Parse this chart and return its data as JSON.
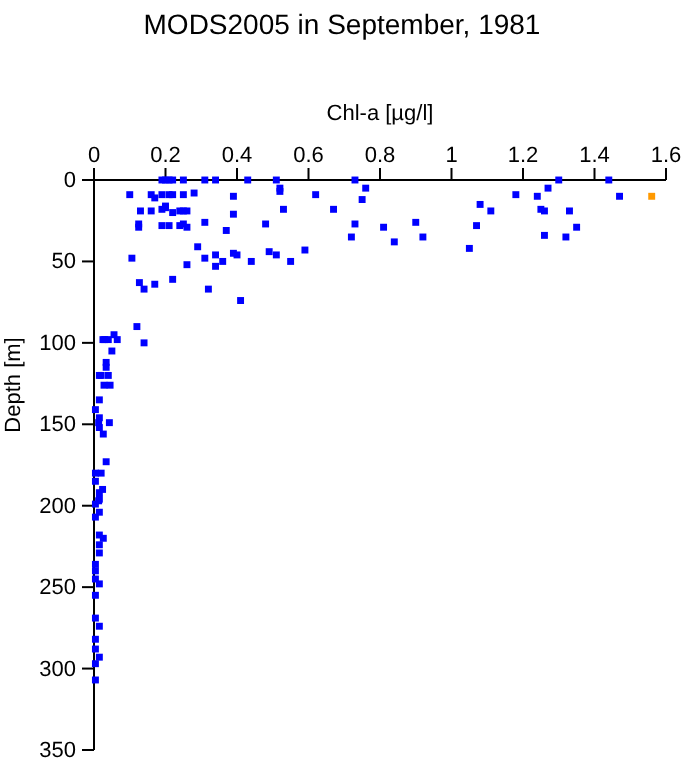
{
  "chart_data": {
    "type": "scatter",
    "title": "MODS2005 in September, 1981",
    "xlabel": "Chl-a [µg/l]",
    "ylabel": "Depth [m]",
    "xlim": [
      0,
      1.6
    ],
    "xticks": [
      0,
      0.2,
      0.4,
      0.6,
      0.8,
      1,
      1.2,
      1.4,
      1.6
    ],
    "ylim": [
      350,
      0
    ],
    "yticks": [
      0,
      50,
      100,
      150,
      200,
      250,
      300,
      350
    ],
    "marker": "square",
    "grid": false,
    "series": [
      {
        "color": "#0000ff",
        "x": [
          0.1,
          0.13,
          0.125,
          0.125,
          0.106,
          0.127,
          0.14,
          0.17,
          0.22,
          0.26,
          0.29,
          0.31,
          0.34,
          0.34,
          0.32,
          0.36,
          0.39,
          0.4,
          0.41,
          0.44,
          0.49,
          0.51,
          0.55,
          0.59,
          0.37,
          0.39,
          0.39,
          0.48,
          0.53,
          0.52,
          0.52,
          0.62,
          0.67,
          0.72,
          0.73,
          0.75,
          0.76,
          0.73,
          0.51,
          0.43,
          0.34,
          0.31,
          0.19,
          0.2,
          0.21,
          0.22,
          0.25,
          0.16,
          0.19,
          0.21,
          0.25,
          0.22,
          0.28,
          0.19,
          0.2,
          0.22,
          0.2,
          0.24,
          0.25,
          0.26,
          0.19,
          0.21,
          0.24,
          0.25,
          0.26,
          0.31,
          0.16,
          0.17,
          0.81,
          0.84,
          0.9,
          0.92,
          1.05,
          1.07,
          1.08,
          1.11,
          1.18,
          1.24,
          1.25,
          1.26,
          1.27,
          1.3,
          1.26,
          1.32,
          1.33,
          1.35,
          1.44,
          1.47,
          0.12,
          0.14,
          0.056,
          0.03,
          0.025,
          0.04,
          0.065,
          0.05,
          0.034,
          0.034,
          0.02,
          0.015,
          0.04,
          0.028,
          0.045,
          0.015,
          0.004,
          0.015,
          0.013,
          0.015,
          0.043,
          0.026,
          0.034,
          0.004,
          0.02,
          0.004,
          0.024,
          0.015,
          0.015,
          0.004,
          0.013,
          0.015,
          0.004,
          0.015,
          0.026,
          0.015,
          0.015,
          0.004,
          0.004,
          0.004,
          0.015,
          0.004,
          0.004,
          0.015,
          0.004,
          0.004,
          0.015,
          0.004,
          0.004
        ],
        "values": [
          9,
          19,
          27,
          29,
          48,
          63,
          67,
          64,
          61,
          52,
          41,
          48,
          46,
          53,
          67,
          50,
          45,
          46,
          74,
          50,
          44,
          46,
          50,
          43,
          31,
          21,
          10,
          27,
          18,
          5,
          7,
          9,
          18,
          35,
          27,
          12,
          5,
          0,
          0,
          0,
          0,
          0,
          0,
          0,
          0,
          0,
          0,
          9,
          9,
          9,
          9,
          9,
          8,
          18,
          17,
          20,
          16,
          19,
          19,
          19,
          28,
          28,
          28,
          27,
          29,
          26,
          19,
          11,
          29,
          38,
          26,
          35,
          42,
          28,
          15,
          19,
          9,
          10,
          18,
          19,
          5,
          0,
          34,
          35,
          19,
          29,
          0,
          10,
          90,
          100,
          95,
          98,
          98,
          98,
          98,
          105,
          112,
          115,
          120,
          120,
          120,
          126,
          126,
          135,
          141,
          146,
          149,
          152,
          149,
          156,
          173,
          180,
          180,
          185,
          190,
          192,
          196,
          199,
          197,
          204,
          207,
          218,
          220,
          224,
          229,
          236,
          240,
          245,
          248,
          255,
          269,
          274,
          282,
          288,
          293,
          297,
          307
        ]
      },
      {
        "color": "#ff9900",
        "x": [
          1.56
        ],
        "values": [
          10
        ]
      }
    ]
  }
}
